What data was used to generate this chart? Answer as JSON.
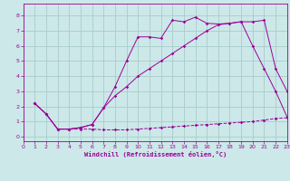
{
  "bg_color": "#cce8e8",
  "line_color": "#990099",
  "grid_color": "#aacccc",
  "xlabel": "Windchill (Refroidissement éolien,°C)",
  "xlim": [
    0,
    23
  ],
  "ylim": [
    -0.3,
    8.8
  ],
  "yticks": [
    0,
    1,
    2,
    3,
    4,
    5,
    6,
    7,
    8
  ],
  "xticks": [
    0,
    1,
    2,
    3,
    4,
    5,
    6,
    7,
    8,
    9,
    10,
    11,
    12,
    13,
    14,
    15,
    16,
    17,
    18,
    19,
    20,
    21,
    22,
    23
  ],
  "line1_x": [
    1,
    2,
    3,
    4,
    5,
    6,
    7,
    8,
    9,
    10,
    11,
    12,
    13,
    14,
    15,
    16,
    17,
    18,
    19,
    20,
    21,
    22,
    23
  ],
  "line1_y": [
    2.2,
    1.5,
    0.5,
    0.5,
    0.5,
    0.5,
    0.45,
    0.45,
    0.45,
    0.5,
    0.55,
    0.6,
    0.65,
    0.7,
    0.75,
    0.8,
    0.85,
    0.9,
    0.95,
    1.0,
    1.1,
    1.2,
    1.25
  ],
  "line2_x": [
    1,
    2,
    3,
    4,
    5,
    6,
    7,
    8,
    9,
    10,
    11,
    12,
    13,
    14,
    15,
    16,
    17,
    18,
    19,
    20,
    21,
    22,
    23
  ],
  "line2_y": [
    2.2,
    1.5,
    0.5,
    0.5,
    0.6,
    0.8,
    1.9,
    3.3,
    5.0,
    6.6,
    6.6,
    6.5,
    7.7,
    7.6,
    7.9,
    7.5,
    7.45,
    7.5,
    7.6,
    7.6,
    7.7,
    4.5,
    3.0
  ],
  "line3_x": [
    1,
    2,
    3,
    4,
    5,
    6,
    7,
    8,
    9,
    10,
    11,
    12,
    13,
    14,
    15,
    16,
    17,
    18,
    19,
    20,
    21,
    22,
    23
  ],
  "line3_y": [
    2.2,
    1.5,
    0.5,
    0.5,
    0.6,
    0.8,
    1.9,
    2.7,
    3.3,
    4.0,
    4.5,
    5.0,
    5.5,
    6.0,
    6.5,
    7.0,
    7.4,
    7.5,
    7.6,
    6.0,
    4.5,
    3.0,
    1.3
  ]
}
